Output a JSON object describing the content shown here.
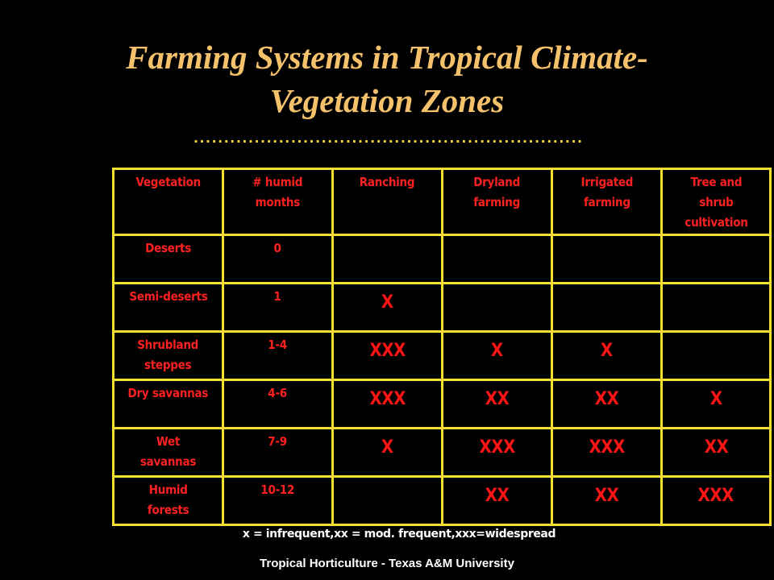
{
  "slide": {
    "title": "Farming Systems in Tropical Climate-Vegetation Zones",
    "title_line1": "Farming Systems in Tropical Climate-",
    "title_line2": "Vegetation Zones",
    "divider": "................................................................",
    "legend": "x = infrequent,xx = mod. frequent,xxx=widespread",
    "footer": "Tropical Horticulture - Texas A&M University"
  },
  "colors": {
    "background": "#000000",
    "title": "#F5C26B",
    "grid_lines": "#F3E033",
    "cell_text": "#FF2020",
    "footer_text": "#FFFFFF"
  },
  "table": {
    "headers": [
      "Vegetation",
      "# humid months",
      "Ranching",
      "Dryland farming",
      "Irrigated farming",
      "Tree and shrub cultivation"
    ],
    "header_lines": [
      [
        "Vegetation"
      ],
      [
        "# humid",
        "months"
      ],
      [
        "Ranching"
      ],
      [
        "Dryland",
        "farming"
      ],
      [
        "Irrigated",
        "farming"
      ],
      [
        "Tree and",
        "shrub",
        "cultivation"
      ]
    ],
    "rows": [
      {
        "vegetation": "Deserts",
        "vegetation_lines": [
          "Deserts"
        ],
        "humid_months": "0",
        "ranching": "",
        "dryland_farming": "",
        "irrigated_farming": "",
        "tree_shrub": ""
      },
      {
        "vegetation": "Semi-deserts",
        "vegetation_lines": [
          "Semi-deserts"
        ],
        "humid_months": "1",
        "ranching": "X",
        "dryland_farming": "",
        "irrigated_farming": "",
        "tree_shrub": ""
      },
      {
        "vegetation": "Shrubland steppes",
        "vegetation_lines": [
          "Shrubland",
          "steppes"
        ],
        "humid_months": "1-4",
        "ranching": "XXX",
        "dryland_farming": "X",
        "irrigated_farming": "X",
        "tree_shrub": ""
      },
      {
        "vegetation": "Dry savannas",
        "vegetation_lines": [
          "Dry savannas"
        ],
        "humid_months": "4-6",
        "ranching": "XXX",
        "dryland_farming": "XX",
        "irrigated_farming": "XX",
        "tree_shrub": "X"
      },
      {
        "vegetation": "Wet savannas",
        "vegetation_lines": [
          "Wet",
          "savannas"
        ],
        "humid_months": "7-9",
        "ranching": "X",
        "dryland_farming": "XXX",
        "irrigated_farming": "XXX",
        "tree_shrub": "XX"
      },
      {
        "vegetation": "Humid forests",
        "vegetation_lines": [
          "Humid",
          "forests"
        ],
        "humid_months": "10-12",
        "ranching": "",
        "dryland_farming": "XX",
        "irrigated_farming": "XX",
        "tree_shrub": "XXX"
      }
    ]
  }
}
